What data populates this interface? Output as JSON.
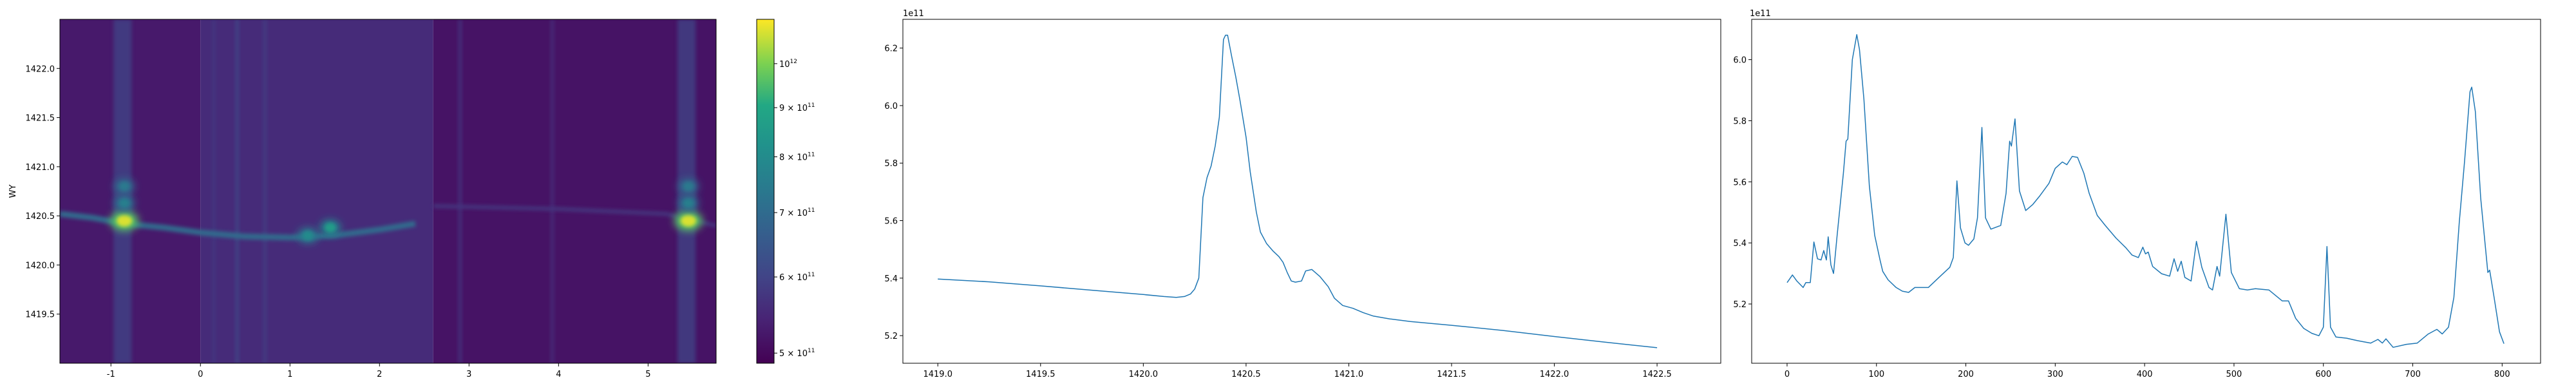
{
  "chart_data": [
    {
      "type": "heatmap",
      "xlabel": "",
      "ylabel": "WY",
      "xlim": [
        -1.57,
        5.76
      ],
      "ylim": [
        1419.0,
        1422.5
      ],
      "xticks": [
        "-1",
        "0",
        "1",
        "2",
        "3",
        "4",
        "5"
      ],
      "yticks": [
        "1419.5",
        "1420.0",
        "1420.5",
        "1421.0",
        "1421.5",
        "1422.0"
      ],
      "colormap": "viridis",
      "colorbar": {
        "scale": "log",
        "range": [
          488000000000.0,
          1112000000000.0
        ],
        "ticks": [
          {
            "value": 500000000000.0,
            "label": "5 × 10",
            "exp": "11"
          },
          {
            "value": 600000000000.0,
            "label": "6 × 10",
            "exp": "11"
          },
          {
            "value": 700000000000.0,
            "label": "7 × 10",
            "exp": "11"
          },
          {
            "value": 800000000000.0,
            "label": "8 × 10",
            "exp": "11"
          },
          {
            "value": 900000000000.0,
            "label": "9 × 10",
            "exp": "11"
          },
          {
            "value": 1000000000000.0,
            "label": "10",
            "exp": "12"
          }
        ]
      },
      "background_regions": [
        {
          "x": [
            -1.57,
            0.0
          ],
          "value": 525000000000.0
        },
        {
          "x": [
            0.0,
            2.6
          ],
          "value": 555000000000.0
        },
        {
          "x": [
            2.6,
            5.76
          ],
          "value": 515000000000.0
        }
      ],
      "vertical_bands": [
        {
          "x": -0.87,
          "value": 600000000000.0
        },
        {
          "x": 0.15,
          "value": 580000000000.0
        },
        {
          "x": 0.41,
          "value": 610000000000.0
        },
        {
          "x": 0.72,
          "value": 590000000000.0
        },
        {
          "x": 2.9,
          "value": 570000000000.0
        },
        {
          "x": 3.93,
          "value": 560000000000.0
        },
        {
          "x": 5.43,
          "value": 600000000000.0
        }
      ],
      "ridge": {
        "x": [
          -1.57,
          -1.2,
          -0.85,
          -0.4,
          0.0,
          0.5,
          1.0,
          1.5,
          2.0,
          2.4
        ],
        "y": [
          1420.52,
          1420.48,
          1420.42,
          1420.38,
          1420.33,
          1420.29,
          1420.28,
          1420.3,
          1420.36,
          1420.42
        ],
        "value": 700000000000.0
      },
      "peaks": [
        {
          "x": -0.85,
          "y": 1420.45,
          "value": 1080000000000.0
        },
        {
          "x": -0.85,
          "y": 1420.63,
          "value": 760000000000.0
        },
        {
          "x": -0.85,
          "y": 1420.8,
          "value": 740000000000.0
        },
        {
          "x": 1.45,
          "y": 1420.38,
          "value": 860000000000.0
        },
        {
          "x": 1.2,
          "y": 1420.3,
          "value": 800000000000.0
        },
        {
          "x": 5.45,
          "y": 1420.45,
          "value": 1080000000000.0
        },
        {
          "x": 5.45,
          "y": 1420.63,
          "value": 760000000000.0
        },
        {
          "x": 5.45,
          "y": 1420.8,
          "value": 740000000000.0
        }
      ]
    },
    {
      "type": "line",
      "offset_label": "1e11",
      "xlim": [
        1418.83,
        1422.81
      ],
      "ylim": [
        5.104,
        6.3
      ],
      "xticks": [
        "1419.0",
        "1419.5",
        "1420.0",
        "1420.5",
        "1421.0",
        "1421.5",
        "1422.0",
        "1422.5"
      ],
      "yticks": [
        "5.2",
        "5.4",
        "5.6",
        "5.8",
        "6.0",
        "6.2"
      ],
      "color": "#1f77b4",
      "x": [
        1419.0,
        1419.25,
        1419.5,
        1419.75,
        1420.0,
        1420.1,
        1420.16,
        1420.2,
        1420.23,
        1420.25,
        1420.27,
        1420.29,
        1420.31,
        1420.33,
        1420.35,
        1420.37,
        1420.39,
        1420.4,
        1420.41,
        1420.43,
        1420.45,
        1420.47,
        1420.5,
        1420.52,
        1420.55,
        1420.57,
        1420.6,
        1420.63,
        1420.66,
        1420.68,
        1420.7,
        1420.72,
        1420.74,
        1420.77,
        1420.79,
        1420.82,
        1420.86,
        1420.9,
        1420.93,
        1420.97,
        1421.02,
        1421.07,
        1421.12,
        1421.2,
        1421.3,
        1421.5,
        1421.75,
        1422.0,
        1422.25,
        1422.5
      ],
      "y": [
        5.397,
        5.387,
        5.373,
        5.358,
        5.343,
        5.336,
        5.333,
        5.336,
        5.345,
        5.362,
        5.4,
        5.68,
        5.75,
        5.79,
        5.86,
        5.96,
        6.23,
        6.245,
        6.245,
        6.17,
        6.1,
        6.02,
        5.89,
        5.77,
        5.63,
        5.56,
        5.52,
        5.495,
        5.475,
        5.455,
        5.42,
        5.39,
        5.386,
        5.39,
        5.425,
        5.43,
        5.405,
        5.37,
        5.33,
        5.305,
        5.295,
        5.28,
        5.268,
        5.258,
        5.249,
        5.236,
        5.218,
        5.197,
        5.177,
        5.158
      ]
    },
    {
      "type": "line",
      "offset_label": "1e11",
      "xlim": [
        -39.6,
        843
      ],
      "ylim": [
        5.006,
        6.132
      ],
      "xticks": [
        "0",
        "100",
        "200",
        "300",
        "400",
        "500",
        "600",
        "700",
        "800"
      ],
      "yticks": [
        "5.2",
        "5.4",
        "5.6",
        "5.8",
        "6.0"
      ],
      "color": "#1f77b4",
      "x": [
        0,
        6,
        11,
        18,
        21,
        26,
        30,
        34,
        38,
        41,
        44,
        46,
        49,
        52,
        56,
        63,
        66,
        68,
        73,
        78,
        81,
        86,
        92,
        98,
        104,
        107,
        113,
        122,
        129,
        136,
        143,
        158,
        170,
        182,
        186,
        190,
        194,
        199,
        203,
        209,
        213,
        218,
        222,
        228,
        239,
        245,
        249,
        251,
        255,
        260,
        267,
        275,
        283,
        293,
        300,
        308,
        313,
        319,
        325,
        332,
        338,
        347,
        356,
        368,
        379,
        386,
        393,
        398,
        401,
        404,
        409,
        419,
        428,
        433,
        437,
        441,
        445,
        452,
        458,
        464,
        472,
        476,
        481,
        484,
        491,
        497,
        506,
        515,
        524,
        539,
        554,
        561,
        569,
        578,
        587,
        595,
        600,
        604,
        608,
        614,
        626,
        638,
        653,
        661,
        666,
        670,
        678,
        693,
        705,
        717,
        727,
        733,
        740,
        746,
        752,
        758,
        764,
        766,
        770,
        776,
        784,
        786,
        791,
        797,
        802
      ],
      "y": [
        5.27,
        5.295,
        5.275,
        5.254,
        5.27,
        5.27,
        5.403,
        5.348,
        5.344,
        5.375,
        5.344,
        5.42,
        5.328,
        5.3,
        5.425,
        5.628,
        5.733,
        5.74,
        6.0,
        6.082,
        6.033,
        5.87,
        5.587,
        5.425,
        5.344,
        5.307,
        5.279,
        5.254,
        5.242,
        5.238,
        5.254,
        5.254,
        5.287,
        5.32,
        5.352,
        5.603,
        5.449,
        5.4,
        5.392,
        5.413,
        5.482,
        5.778,
        5.482,
        5.445,
        5.457,
        5.562,
        5.733,
        5.717,
        5.806,
        5.57,
        5.506,
        5.526,
        5.555,
        5.595,
        5.644,
        5.665,
        5.656,
        5.683,
        5.68,
        5.628,
        5.562,
        5.49,
        5.457,
        5.416,
        5.384,
        5.36,
        5.352,
        5.386,
        5.364,
        5.37,
        5.323,
        5.299,
        5.291,
        5.348,
        5.307,
        5.34,
        5.287,
        5.275,
        5.405,
        5.32,
        5.254,
        5.246,
        5.323,
        5.291,
        5.494,
        5.303,
        5.25,
        5.246,
        5.25,
        5.246,
        5.21,
        5.21,
        5.153,
        5.12,
        5.104,
        5.096,
        5.124,
        5.388,
        5.124,
        5.092,
        5.088,
        5.08,
        5.072,
        5.084,
        5.072,
        5.086,
        5.058,
        5.068,
        5.072,
        5.101,
        5.117,
        5.102,
        5.124,
        5.222,
        5.466,
        5.668,
        5.895,
        5.91,
        5.83,
        5.547,
        5.303,
        5.311,
        5.222,
        5.109,
        5.07
      ]
    }
  ]
}
